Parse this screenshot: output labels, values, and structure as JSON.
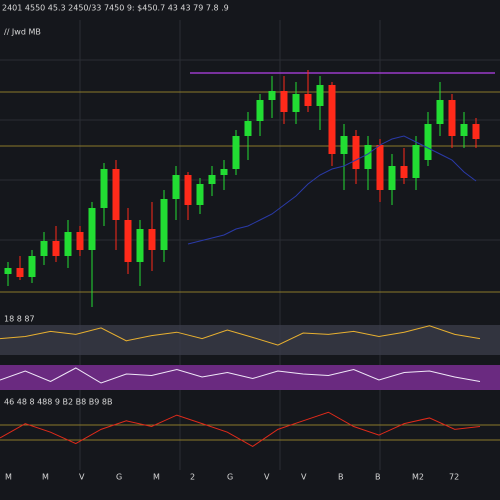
{
  "chart_data": {
    "type": "candlestick",
    "header": "2401 4550  45.3 2450/33  7450 9:  $450.7  43 43 79  7.8 .9",
    "symbol": "// Jwd MB",
    "ylim": [
      0,
      100
    ],
    "up_color": "#22dd33",
    "down_color": "#ff2a1a",
    "open": [
      12,
      14,
      11,
      18,
      23,
      18,
      26,
      20,
      34,
      47,
      30,
      16,
      27,
      20,
      37,
      45,
      35,
      42,
      45,
      47,
      58,
      63,
      70,
      73,
      66,
      72,
      68,
      75,
      52,
      58,
      47,
      55,
      40,
      48,
      44,
      50,
      62,
      70,
      58,
      62
    ],
    "high": [
      16,
      18,
      20,
      26,
      28,
      30,
      28,
      36,
      49,
      50,
      34,
      30,
      36,
      40,
      48,
      46,
      44,
      48,
      50,
      60,
      66,
      72,
      78,
      78,
      76,
      80,
      78,
      76,
      62,
      60,
      58,
      57,
      52,
      54,
      58,
      66,
      76,
      72,
      66,
      64
    ],
    "low": [
      8,
      10,
      9,
      15,
      16,
      14,
      18,
      1,
      28,
      20,
      12,
      8,
      13,
      16,
      30,
      30,
      32,
      38,
      40,
      45,
      50,
      58,
      64,
      62,
      62,
      66,
      60,
      48,
      40,
      42,
      40,
      36,
      35,
      42,
      40,
      48,
      58,
      54,
      54,
      54
    ],
    "close": [
      14,
      11,
      18,
      23,
      18,
      26,
      20,
      34,
      47,
      30,
      16,
      27,
      20,
      37,
      45,
      35,
      42,
      45,
      47,
      58,
      63,
      70,
      73,
      66,
      72,
      68,
      75,
      52,
      58,
      47,
      55,
      40,
      48,
      44,
      55,
      62,
      70,
      58,
      62,
      57
    ],
    "overlay": {
      "color": "#2a3aa8",
      "values": [
        null,
        null,
        null,
        null,
        null,
        null,
        null,
        null,
        null,
        null,
        null,
        null,
        null,
        null,
        null,
        22,
        23,
        24,
        25,
        27,
        28,
        30,
        32,
        35,
        38,
        42,
        45,
        47,
        48,
        50,
        52,
        55,
        57,
        58,
        56,
        54,
        52,
        50,
        46,
        43
      ]
    },
    "panels": [
      {
        "label": "18 8 87",
        "color": "#e8b030",
        "ylim": [
          0,
          100
        ],
        "values": [
          45,
          50,
          62,
          55,
          70,
          40,
          52,
          60,
          45,
          65,
          48,
          30,
          58,
          55,
          62,
          50,
          60,
          75,
          55,
          45
        ]
      },
      {
        "color": "#f0e8f8",
        "ylim": [
          0,
          100
        ],
        "values": [
          40,
          70,
          35,
          80,
          30,
          60,
          55,
          75,
          50,
          65,
          45,
          70,
          60,
          55,
          75,
          40,
          65,
          70,
          50,
          35
        ]
      },
      {
        "label": "46 48 8 488 9 B2 B8 B9 8B",
        "color": "#e02a1a",
        "ylim": [
          0,
          100
        ],
        "values": [
          30,
          55,
          40,
          20,
          45,
          60,
          50,
          70,
          55,
          40,
          15,
          45,
          60,
          75,
          50,
          35,
          55,
          65,
          45,
          50
        ]
      }
    ],
    "x_labels": [
      "M",
      "M",
      "V",
      "G",
      "M",
      "2",
      "G",
      "V",
      "V",
      "B",
      "B",
      "M2",
      "72"
    ]
  }
}
